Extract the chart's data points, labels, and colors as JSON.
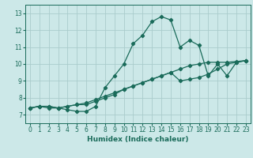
{
  "title": "",
  "xlabel": "Humidex (Indice chaleur)",
  "ylabel": "",
  "bg_color": "#cce8e8",
  "grid_color": "#aacccc",
  "line_color": "#1a6b5a",
  "marker": "D",
  "markersize": 2.2,
  "linewidth": 0.9,
  "xlim": [
    -0.5,
    23.5
  ],
  "ylim": [
    6.5,
    13.5
  ],
  "xticks": [
    0,
    1,
    2,
    3,
    4,
    5,
    6,
    7,
    8,
    9,
    10,
    11,
    12,
    13,
    14,
    15,
    16,
    17,
    18,
    19,
    20,
    21,
    22,
    23
  ],
  "yticks": [
    7,
    8,
    9,
    10,
    11,
    12,
    13
  ],
  "series": [
    [
      7.4,
      7.5,
      7.4,
      7.4,
      7.3,
      7.2,
      7.2,
      7.5,
      8.6,
      9.3,
      10.0,
      11.2,
      11.7,
      12.5,
      12.8,
      12.6,
      11.0,
      11.4,
      11.1,
      9.3,
      10.0,
      9.3,
      10.1,
      10.2
    ],
    [
      7.4,
      7.5,
      7.5,
      7.4,
      7.5,
      7.6,
      7.6,
      7.8,
      8.0,
      8.2,
      8.5,
      8.7,
      8.9,
      9.1,
      9.3,
      9.5,
      9.0,
      9.1,
      9.2,
      9.4,
      9.7,
      10.0,
      10.1,
      10.2
    ],
    [
      7.4,
      7.5,
      7.5,
      7.4,
      7.5,
      7.6,
      7.7,
      7.9,
      8.1,
      8.3,
      8.5,
      8.7,
      8.9,
      9.1,
      9.3,
      9.5,
      9.7,
      9.9,
      10.0,
      10.1,
      10.1,
      10.1,
      10.15,
      10.2
    ]
  ],
  "xlabel_fontsize": 6.5,
  "tick_fontsize": 5.5
}
